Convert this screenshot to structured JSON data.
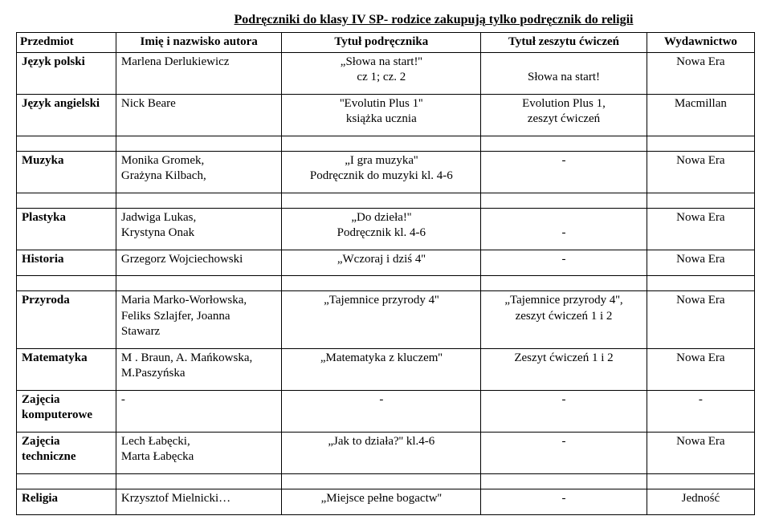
{
  "title": "Podręczniki do klasy IV SP- rodzice zakupują tylko podręcznik do religii",
  "headers": {
    "subject": "Przedmiot",
    "author": "Imię i nazwisko autora",
    "textbook": "Tytuł podręcznika",
    "workbook": "Tytuł zeszytu ćwiczeń",
    "publisher": "Wydawnictwo"
  },
  "rows": [
    {
      "subject": "Język polski",
      "author": "Marlena Derlukiewicz",
      "textbook": "„Słowa na start!''\ncz 1; cz. 2",
      "workbook": "\nSłowa na start!",
      "publisher": "Nowa Era"
    },
    {
      "subject": "Język angielski",
      "author": "Nick Beare",
      "textbook": "''Evolutin Plus 1''\nksiążka ucznia",
      "workbook": "Evolution Plus 1,\nzeszyt ćwiczeń",
      "publisher": "Macmillan"
    },
    {
      "subject": "Muzyka",
      "author": "Monika Gromek,\nGrażyna Kilbach,",
      "textbook": "„I gra muzyka''\nPodręcznik do muzyki kl. 4-6",
      "workbook": "-",
      "publisher": "Nowa Era"
    },
    {
      "subject": "Plastyka",
      "author": "Jadwiga Lukas,\nKrystyna Onak",
      "textbook": "„Do dzieła!''\nPodręcznik  kl. 4-6",
      "workbook": "\n-",
      "publisher": "Nowa Era"
    },
    {
      "subject": "Historia",
      "author": "Grzegorz Wojciechowski",
      "textbook": "„Wczoraj i dziś 4''",
      "workbook": "-",
      "publisher": "Nowa Era"
    },
    {
      "subject": "Przyroda",
      "author": "Maria Marko-Worłowska,\nFeliks Szlajfer, Joanna\nStawarz",
      "textbook": "„Tajemnice przyrody 4''",
      "workbook": "„Tajemnice przyrody 4'',\nzeszyt ćwiczeń 1 i 2",
      "publisher": "Nowa Era"
    },
    {
      "subject": "Matematyka",
      "author": "M . Braun, A. Mańkowska,\nM.Paszyńska",
      "textbook": "„Matematyka z kluczem''",
      "workbook": "Zeszyt ćwiczeń  1 i  2",
      "publisher": "Nowa Era"
    },
    {
      "subject": "Zajęcia\nkomputerowe",
      "author": "-",
      "textbook": "-",
      "workbook": "-",
      "publisher": "-"
    },
    {
      "subject": "Zajęcia\ntechniczne",
      "author": "Lech Łabęcki,\nMarta Łabęcka",
      "textbook": "„Jak to działa?'' kl.4-6",
      "workbook": "-",
      "publisher": "Nowa Era"
    },
    {
      "subject": "Religia",
      "author": "Krzysztof Mielnicki…",
      "textbook": "„Miejsce pełne bogactw''",
      "workbook": "-",
      "publisher": "Jedność"
    }
  ],
  "spacer_after": [
    1,
    2,
    4,
    8
  ]
}
